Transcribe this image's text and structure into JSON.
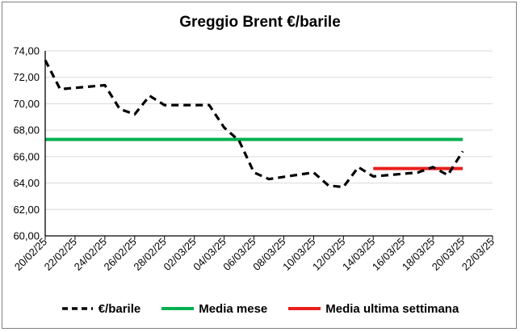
{
  "chart_data": {
    "type": "line",
    "title": "Greggio Brent €/barile",
    "ylim": [
      60,
      74
    ],
    "yticks": [
      "60,00",
      "62,00",
      "64,00",
      "66,00",
      "68,00",
      "70,00",
      "72,00",
      "74,00"
    ],
    "ytick_values": [
      60,
      62,
      64,
      66,
      68,
      70,
      72,
      74
    ],
    "xticks": [
      "20/02/25",
      "22/02/25",
      "24/02/25",
      "26/02/25",
      "28/02/25",
      "02/03/25",
      "04/03/25",
      "06/03/25",
      "08/03/25",
      "10/03/25",
      "12/03/25",
      "14/03/25",
      "16/03/25",
      "18/03/25",
      "20/03/25",
      "22/03/25"
    ],
    "x_range": [
      "2025-02-20",
      "2025-03-22"
    ],
    "grid": "horizontal",
    "legend_position": "bottom",
    "series": [
      {
        "name": "€/barile",
        "color": "#000000",
        "style": "dashed",
        "x": [
          "2025-02-20",
          "2025-02-21",
          "2025-02-24",
          "2025-02-25",
          "2025-02-26",
          "2025-02-27",
          "2025-02-28",
          "2025-03-03",
          "2025-03-04",
          "2025-03-05",
          "2025-03-06",
          "2025-03-07",
          "2025-03-10",
          "2025-03-11",
          "2025-03-12",
          "2025-03-13",
          "2025-03-14",
          "2025-03-17",
          "2025-03-18",
          "2025-03-19",
          "2025-03-20"
        ],
        "values": [
          73.3,
          71.1,
          71.4,
          69.6,
          69.2,
          70.6,
          69.9,
          69.9,
          68.2,
          67.2,
          64.8,
          64.3,
          64.8,
          63.8,
          63.7,
          65.2,
          64.5,
          64.8,
          65.2,
          64.6,
          66.4
        ]
      },
      {
        "name": "Media mese",
        "color": "#00b050",
        "style": "solid",
        "x": [
          "2025-02-20",
          "2025-03-20"
        ],
        "values": [
          67.3,
          67.3
        ]
      },
      {
        "name": "Media ultima settimana",
        "color": "#e8201c",
        "style": "solid",
        "x": [
          "2025-03-14",
          "2025-03-20"
        ],
        "values": [
          65.1,
          65.1
        ]
      }
    ]
  }
}
